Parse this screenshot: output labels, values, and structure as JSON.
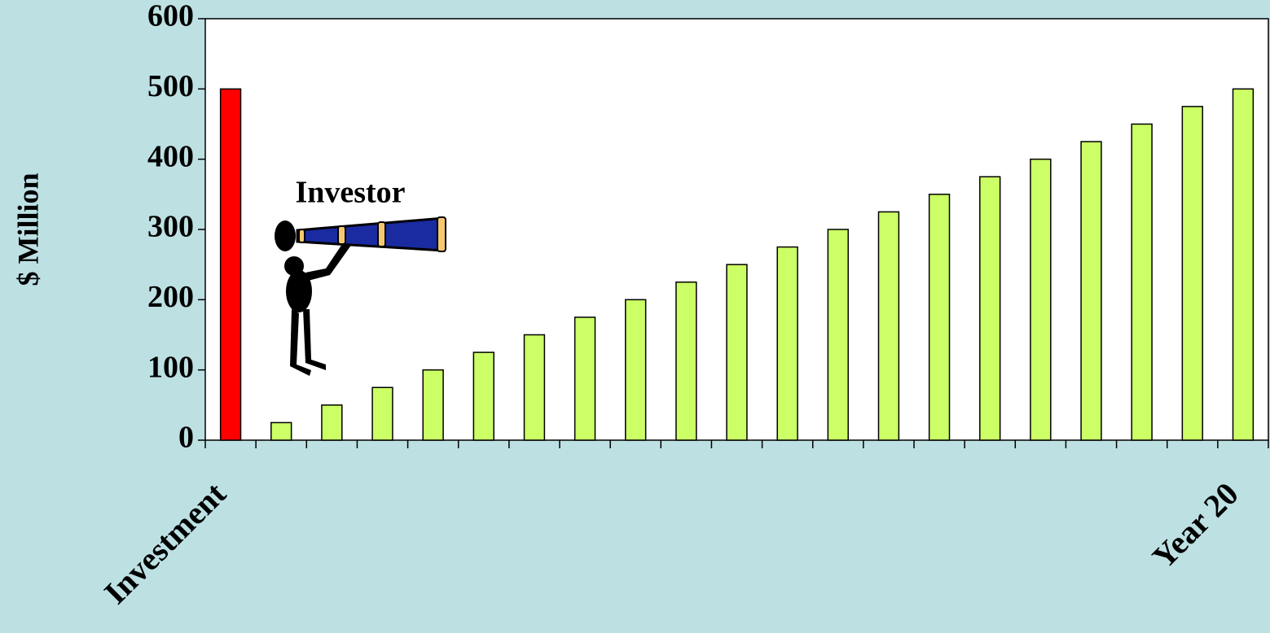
{
  "chart_data": {
    "type": "bar",
    "y_label": "$ Million",
    "annotations": [
      "Investor"
    ],
    "categories": [
      "Investment",
      null,
      null,
      null,
      null,
      null,
      null,
      null,
      null,
      null,
      null,
      null,
      null,
      null,
      null,
      null,
      null,
      null,
      null,
      null,
      "Year 20"
    ],
    "values": [
      500,
      25,
      50,
      75,
      100,
      125,
      150,
      175,
      200,
      225,
      250,
      275,
      300,
      325,
      350,
      375,
      400,
      425,
      450,
      475,
      500
    ],
    "colors": [
      "#ff0000",
      "#ccff66",
      "#ccff66",
      "#ccff66",
      "#ccff66",
      "#ccff66",
      "#ccff66",
      "#ccff66",
      "#ccff66",
      "#ccff66",
      "#ccff66",
      "#ccff66",
      "#ccff66",
      "#ccff66",
      "#ccff66",
      "#ccff66",
      "#ccff66",
      "#ccff66",
      "#ccff66",
      "#ccff66",
      "#ccff66"
    ],
    "ylim": [
      0,
      600
    ],
    "yticks": [
      0,
      100,
      200,
      300,
      400,
      500,
      600
    ],
    "grid": false
  }
}
